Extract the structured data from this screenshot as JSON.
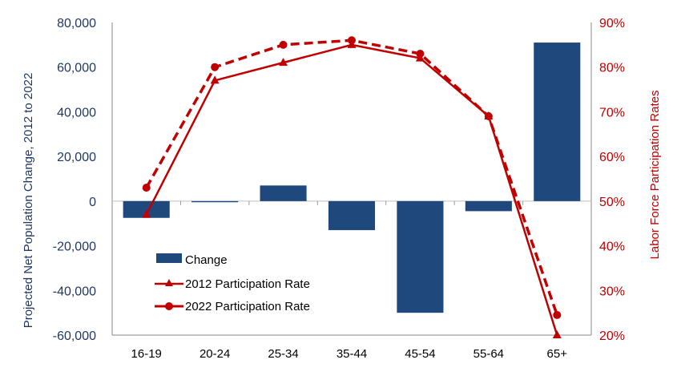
{
  "chart_data": {
    "type": "bar",
    "categories": [
      "16-19",
      "20-24",
      "25-34",
      "35-44",
      "45-54",
      "55-64",
      "65+"
    ],
    "series": [
      {
        "name": "Change",
        "type": "bar",
        "axis": "left",
        "values": [
          -7500,
          -500,
          7000,
          -13000,
          -50000,
          -4500,
          71000
        ],
        "color": "#1f497d"
      },
      {
        "name": "2012 Participation Rate",
        "type": "line",
        "axis": "right",
        "line_style": "solid",
        "marker": "triangle",
        "values": [
          47,
          77,
          81,
          85,
          82,
          69,
          20
        ],
        "color": "#c00000"
      },
      {
        "name": "2022 Participation Rate",
        "type": "line",
        "axis": "right",
        "line_style": "dashed",
        "marker": "circle",
        "values": [
          53,
          80,
          85,
          86,
          83,
          69,
          24.5
        ],
        "color": "#c00000"
      }
    ],
    "ylabel": "Projected Net Population Change, 2012 to 2022",
    "y2label": "Labor Force Participation Rates",
    "ylim": [
      -60000,
      80000
    ],
    "y2lim": [
      20,
      90
    ],
    "yticks": [
      "-60,000",
      "-40,000",
      "-20,000",
      "0",
      "20,000",
      "40,000",
      "60,000",
      "80,000"
    ],
    "y2ticks": [
      "20%",
      "30%",
      "40%",
      "50%",
      "60%",
      "70%",
      "80%",
      "90%"
    ],
    "grid": false,
    "legend_position": "bottom-left"
  }
}
